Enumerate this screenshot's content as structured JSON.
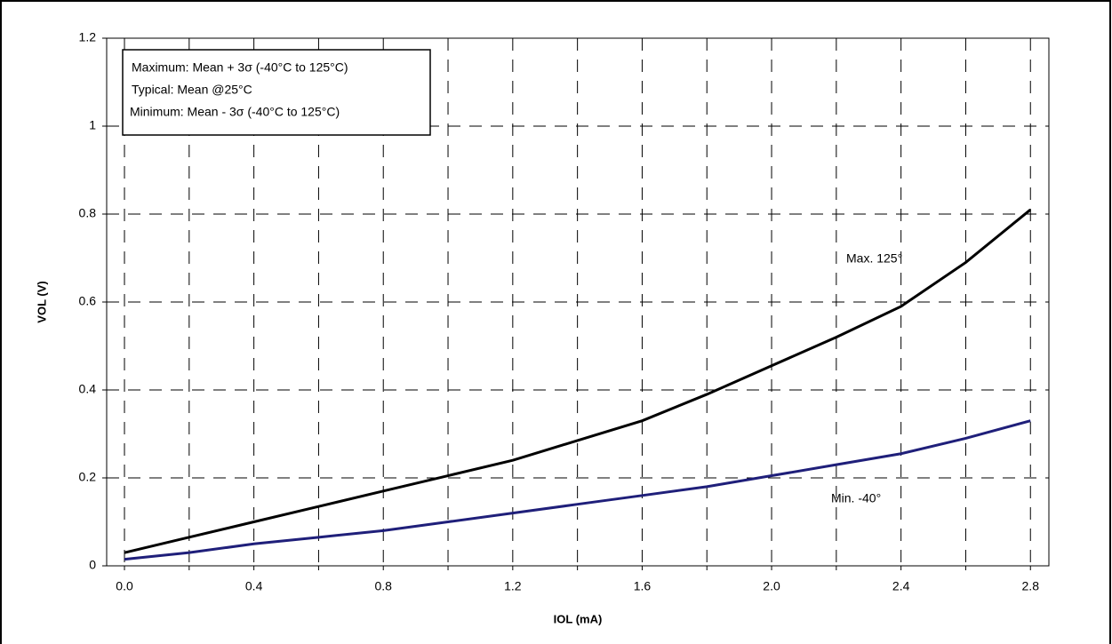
{
  "chart_data": {
    "type": "line",
    "x_label": "IOL (mA)",
    "y_label": "VOL (V)",
    "note_lines": [
      "Maximum: Mean + 3σ (-40°C to 125°C)",
      "Typical: Mean @25°C",
      "Minimum: Mean - 3σ (-40°C to 125°C)"
    ],
    "x": [
      0,
      0.2,
      0.4,
      0.6,
      0.8,
      1.0,
      1.2,
      1.4,
      1.6,
      1.8,
      2.0,
      2.2,
      2.4,
      2.6,
      2.8
    ],
    "series": [
      {
        "name": "Max. 125°",
        "color": "#000000",
        "values": [
          0.03,
          0.065,
          0.1,
          0.135,
          0.17,
          0.205,
          0.24,
          0.285,
          0.33,
          0.39,
          0.455,
          0.52,
          0.59,
          0.69,
          0.81
        ]
      },
      {
        "name": "Min. -40°",
        "color": "#1f1f7a",
        "values": [
          0.015,
          0.03,
          0.05,
          0.065,
          0.08,
          0.1,
          0.12,
          0.14,
          0.16,
          0.18,
          0.205,
          0.23,
          0.255,
          0.29,
          0.33
        ]
      }
    ],
    "xlim": [
      -0.055,
      2.857
    ],
    "xticks": [
      {
        "value": 0,
        "label": "0.0"
      },
      {
        "value": 0.4,
        "label": "0.4"
      },
      {
        "value": 0.8,
        "label": "0.8"
      },
      {
        "value": 1.2,
        "label": "1.2"
      },
      {
        "value": 1.6,
        "label": "1.6"
      },
      {
        "value": 2.0,
        "label": "2.0"
      },
      {
        "value": 2.4,
        "label": "2.4"
      },
      {
        "value": 2.8,
        "label": "2.8"
      }
    ],
    "xminor": [
      0.2,
      0.6,
      1.0,
      1.4,
      1.8,
      2.2,
      2.6
    ],
    "ylim": [
      0,
      1.2
    ],
    "yticks": [
      0,
      0.2,
      0.4,
      0.6,
      0.8,
      1,
      1.2
    ],
    "grid": true
  }
}
